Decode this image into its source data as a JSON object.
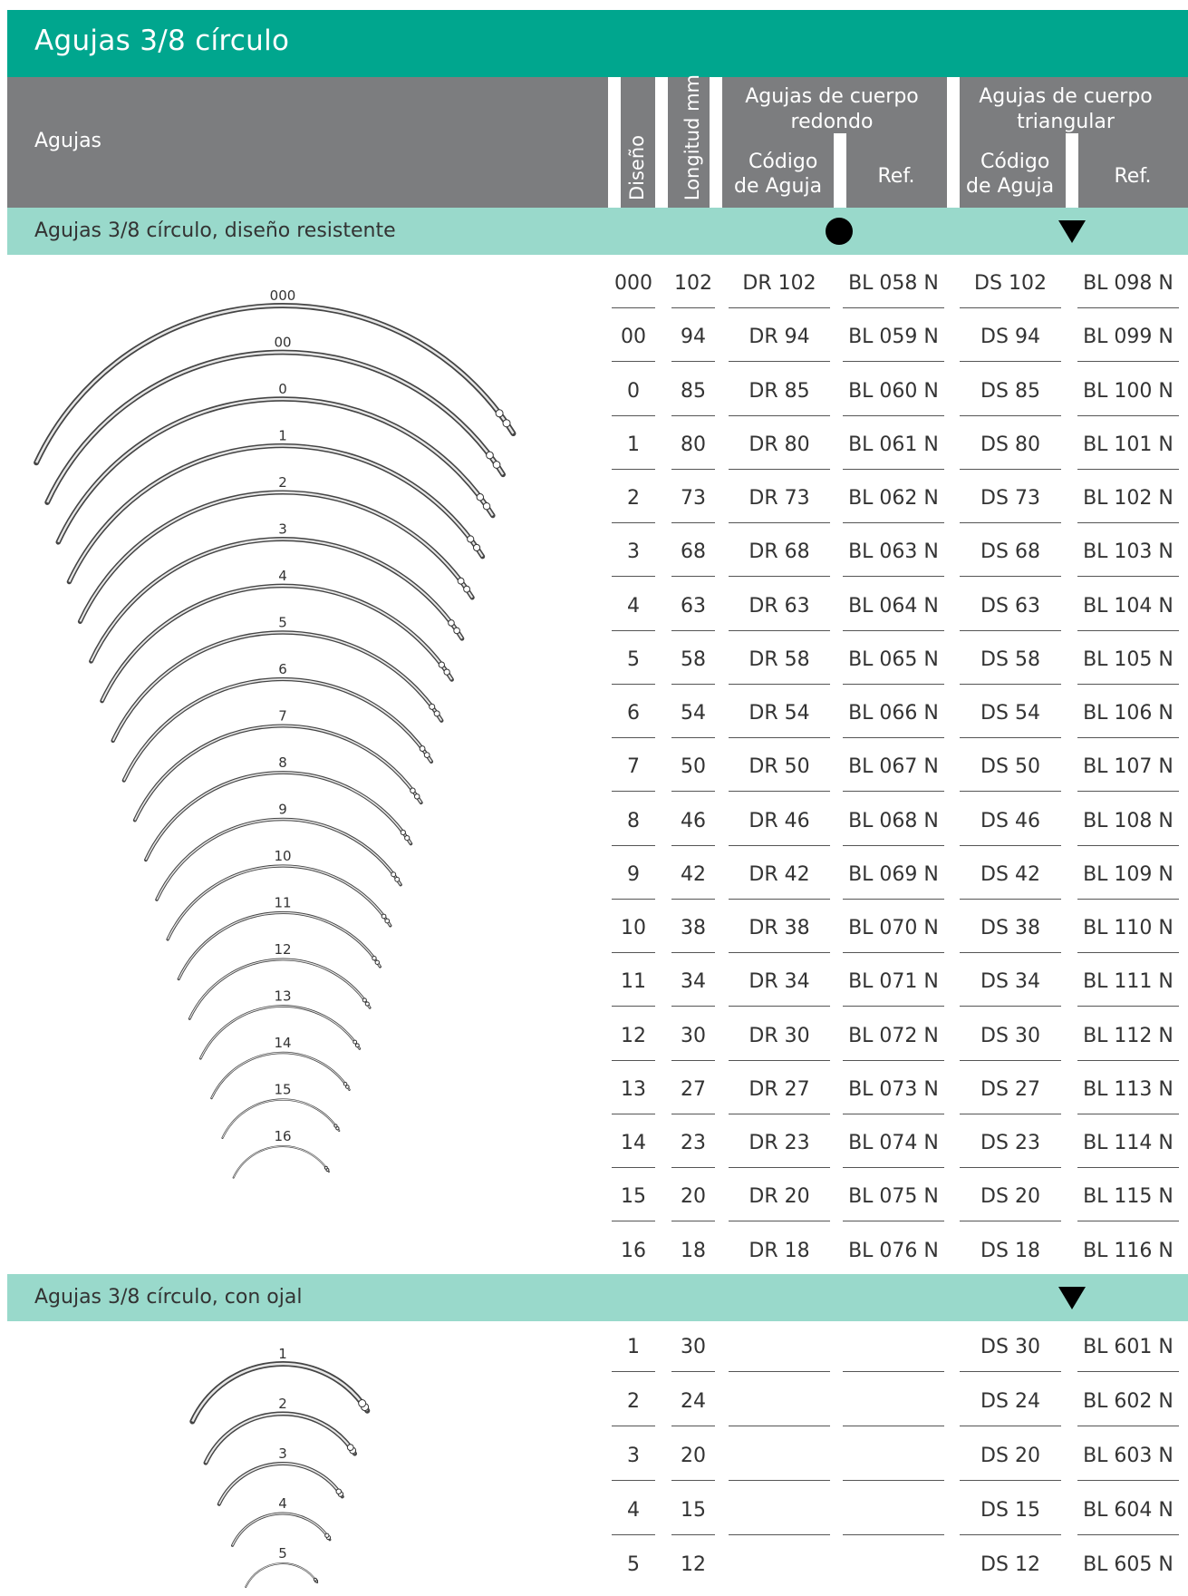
{
  "title": "Agujas 3/8 círculo",
  "header": {
    "agujas": "Agujas",
    "diseno": "Diseño",
    "longitud": "Longitud mm",
    "redondo_title": "Agujas de cuerpo redondo",
    "triangular_title": "Agujas de cuerpo triangular",
    "codigo_line1": "Código",
    "codigo_line2": "de Aguja",
    "ref": "Ref."
  },
  "sections": [
    {
      "title": "Agujas 3/8 círculo, diseño resistente",
      "symbols": [
        "circle",
        "triangle-down"
      ],
      "needle_labels": [
        "000",
        "00",
        "0",
        "1",
        "2",
        "3",
        "4",
        "5",
        "6",
        "7",
        "8",
        "9",
        "10",
        "11",
        "12",
        "13",
        "14",
        "15",
        "16"
      ],
      "rows": [
        [
          "000",
          "102",
          "DR 102",
          "BL 058 N",
          "DS 102",
          "BL 098 N"
        ],
        [
          "00",
          "94",
          "DR 94",
          "BL 059 N",
          "DS 94",
          "BL 099 N"
        ],
        [
          "0",
          "85",
          "DR 85",
          "BL 060 N",
          "DS 85",
          "BL 100 N"
        ],
        [
          "1",
          "80",
          "DR 80",
          "BL 061 N",
          "DS 80",
          "BL 101 N"
        ],
        [
          "2",
          "73",
          "DR 73",
          "BL 062 N",
          "DS 73",
          "BL 102 N"
        ],
        [
          "3",
          "68",
          "DR 68",
          "BL 063 N",
          "DS 68",
          "BL 103 N"
        ],
        [
          "4",
          "63",
          "DR 63",
          "BL 064 N",
          "DS 63",
          "BL 104 N"
        ],
        [
          "5",
          "58",
          "DR 58",
          "BL 065 N",
          "DS 58",
          "BL 105 N"
        ],
        [
          "6",
          "54",
          "DR 54",
          "BL 066 N",
          "DS 54",
          "BL 106 N"
        ],
        [
          "7",
          "50",
          "DR 50",
          "BL 067 N",
          "DS 50",
          "BL 107 N"
        ],
        [
          "8",
          "46",
          "DR 46",
          "BL 068 N",
          "DS 46",
          "BL 108 N"
        ],
        [
          "9",
          "42",
          "DR 42",
          "BL 069 N",
          "DS 42",
          "BL 109 N"
        ],
        [
          "10",
          "38",
          "DR 38",
          "BL 070 N",
          "DS 38",
          "BL 110 N"
        ],
        [
          "11",
          "34",
          "DR 34",
          "BL 071 N",
          "DS 34",
          "BL 111 N"
        ],
        [
          "12",
          "30",
          "DR 30",
          "BL 072 N",
          "DS 30",
          "BL 112 N"
        ],
        [
          "13",
          "27",
          "DR 27",
          "BL 073 N",
          "DS 27",
          "BL 113 N"
        ],
        [
          "14",
          "23",
          "DR 23",
          "BL 074 N",
          "DS 23",
          "BL 114 N"
        ],
        [
          "15",
          "20",
          "DR 20",
          "BL 075 N",
          "DS 20",
          "BL 115 N"
        ],
        [
          "16",
          "18",
          "DR 18",
          "BL 076 N",
          "DS 18",
          "BL 116 N"
        ]
      ]
    },
    {
      "title": "Agujas 3/8 círculo, con ojal",
      "symbols": [
        "triangle-down"
      ],
      "needle_labels": [
        "1",
        "2",
        "3",
        "4",
        "5"
      ],
      "rows": [
        [
          "1",
          "30",
          "",
          "",
          "DS 30",
          "BL 601 N"
        ],
        [
          "2",
          "24",
          "",
          "",
          "DS 24",
          "BL 602 N"
        ],
        [
          "3",
          "20",
          "",
          "",
          "DS 20",
          "BL 603 N"
        ],
        [
          "4",
          "15",
          "",
          "",
          "DS 15",
          "BL 604 N"
        ],
        [
          "5",
          "12",
          "",
          "",
          "DS 12",
          "BL 605 N"
        ]
      ]
    }
  ],
  "colors": {
    "title_bar": "#00a68e",
    "header_bar": "#7c7d7f",
    "section_bar": "#99d9cb"
  }
}
